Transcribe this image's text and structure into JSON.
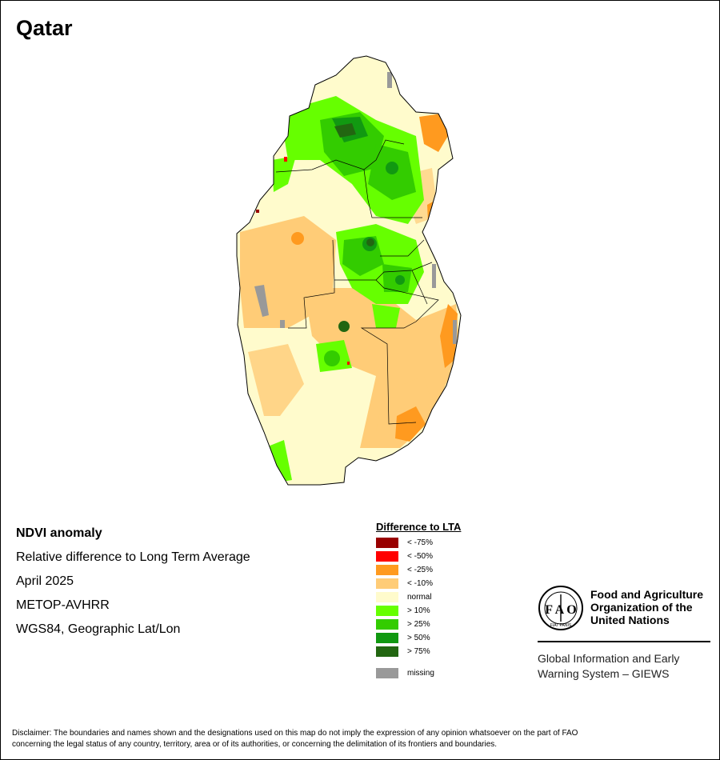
{
  "title": "Qatar",
  "map": {
    "icon": "ndvi-anomaly-raster",
    "colors": {
      "land_normal": "#FFFBCC",
      "water": "#FFFFFF",
      "boundary": "#000000"
    }
  },
  "meta": {
    "line1": "NDVI anomaly",
    "line2": "Relative difference to Long Term Average",
    "line3": "April 2025",
    "line4": "METOP-AVHRR",
    "line5": "WGS84, Geographic Lat/Lon"
  },
  "legend": {
    "title": "Difference to LTA",
    "items": [
      {
        "label": "< -75%",
        "color": "#990000"
      },
      {
        "label": "< -50%",
        "color": "#FF0000"
      },
      {
        "label": "< -25%",
        "color": "#FF9A1F"
      },
      {
        "label": "< -10%",
        "color": "#FFCC77"
      },
      {
        "label": "normal",
        "color": "#FFFBCC"
      },
      {
        "label": "> 10%",
        "color": "#66FF00"
      },
      {
        "label": "> 25%",
        "color": "#33CC00"
      },
      {
        "label": "> 50%",
        "color": "#119911"
      },
      {
        "label": "> 75%",
        "color": "#226611"
      }
    ],
    "missing": {
      "label": "missing",
      "color": "#999999"
    }
  },
  "fao": {
    "name_line1": "Food and Agriculture",
    "name_line2": "Organization of the",
    "name_line3": "United Nations",
    "logo_text": "FIAT PANIS",
    "giews_line1": "Global Information and Early",
    "giews_line2": "Warning System – GIEWS"
  },
  "disclaimer": {
    "line1": "Disclaimer: The boundaries and names shown and the designations used on this map do not imply the expression of any opinion whatsoever on the part of FAO",
    "line2": "concerning the legal status of any country, territory, area or of its authorities, or concerning the delimitation of its frontiers and boundaries."
  }
}
